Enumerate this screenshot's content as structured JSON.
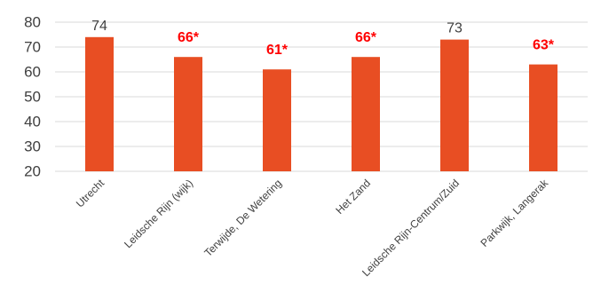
{
  "chart_data": {
    "type": "bar",
    "categories": [
      "Utrecht",
      "Leidsche Rijn (wijk)",
      "Terwijde, De Wetering",
      "Het Zand",
      "Leidsche Rijn-Centrum/Zuid",
      "Parkwijk, Langerak"
    ],
    "values": [
      74,
      66,
      61,
      66,
      73,
      63
    ],
    "data_labels": [
      "74",
      "66*",
      "61*",
      "66*",
      "73",
      "63*"
    ],
    "significant": [
      false,
      true,
      true,
      true,
      false,
      true
    ],
    "ylim": [
      20,
      80
    ],
    "yticks": [
      20,
      30,
      40,
      50,
      60,
      70,
      80
    ],
    "title": "",
    "xlabel": "",
    "ylabel": "",
    "grid": true,
    "legend": "none",
    "colors": {
      "bar": "#e84e23",
      "label_normal": "#404040",
      "label_significant": "#ff0000",
      "grid": "#d9d9d9"
    }
  }
}
